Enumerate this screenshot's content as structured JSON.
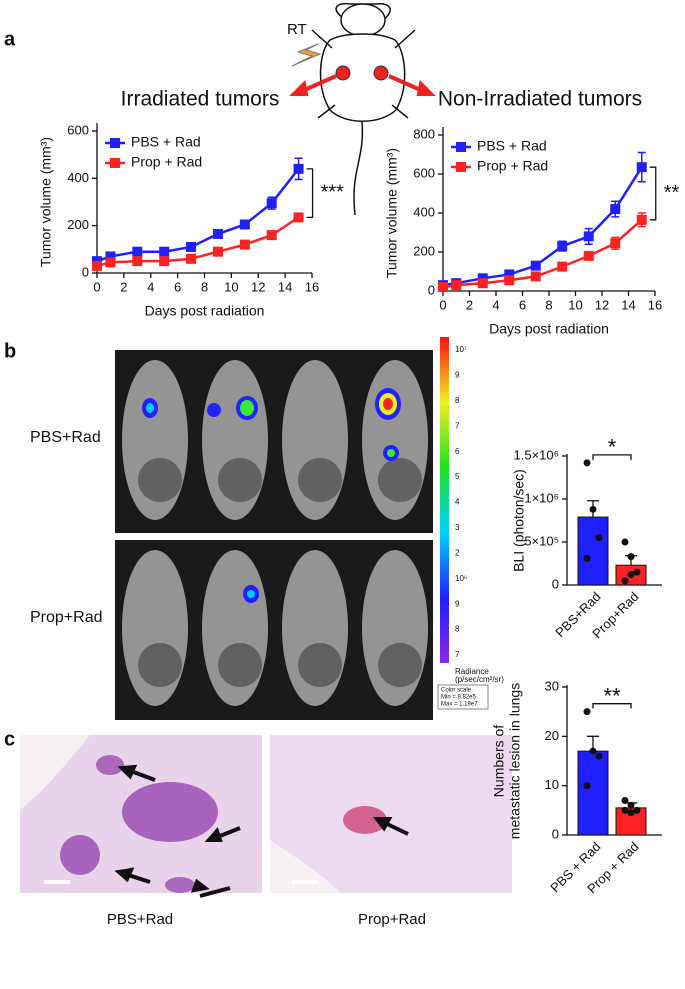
{
  "figure": {
    "panel_labels": [
      "a",
      "b",
      "c"
    ],
    "rt_label": "RT",
    "bli_rows": [
      "PBS+Rad",
      "Prop+Rad"
    ],
    "colorbar_labels": [
      "10⁷",
      "9",
      "8",
      "7",
      "6",
      "5",
      "4",
      "3",
      "2",
      "10⁶",
      "9",
      "8",
      "7"
    ],
    "colorbar_unit": [
      "Radiance",
      "(p/sec/cm²/sr)"
    ],
    "colorbar_box": [
      "Color scale",
      "Min = 8.82e5",
      "Max = 1.18e7"
    ],
    "histology_captions": [
      "PBS+Rad",
      "Prop+Rad"
    ]
  },
  "chart_data": [
    {
      "type": "line",
      "title": "Irradiated tumors",
      "x_label": "Days post radiation",
      "y_label": "Tumor volume (mm³)",
      "x": [
        0,
        1,
        3,
        5,
        7,
        9,
        11,
        13,
        15
      ],
      "series": [
        {
          "name": "PBS + Rad",
          "color": "#1f1fff",
          "values": [
            50,
            70,
            90,
            90,
            110,
            165,
            205,
            295,
            440
          ],
          "errors": [
            10,
            10,
            10,
            10,
            10,
            15,
            15,
            25,
            45
          ]
        },
        {
          "name": "Prop + Rad",
          "color": "#ff2222",
          "values": [
            30,
            45,
            50,
            50,
            60,
            90,
            120,
            160,
            235
          ],
          "errors": [
            5,
            5,
            5,
            5,
            5,
            10,
            10,
            10,
            15
          ]
        }
      ],
      "xlim": [
        0,
        16
      ],
      "xticks": [
        0,
        2,
        4,
        6,
        8,
        10,
        12,
        14,
        16
      ],
      "ylim": [
        0,
        600
      ],
      "yticks": [
        0,
        200,
        400,
        600
      ],
      "annotation": "***",
      "legend": "upper left"
    },
    {
      "type": "line",
      "title": "Non-Irradiated tumors",
      "x_label": "Days post radiation",
      "y_label": "Tumor volume (mm³)",
      "x": [
        0,
        1,
        3,
        5,
        7,
        9,
        11,
        13,
        15
      ],
      "series": [
        {
          "name": "PBS + Rad",
          "color": "#1f1fff",
          "values": [
            30,
            40,
            65,
            85,
            130,
            230,
            280,
            420,
            635
          ],
          "errors": [
            10,
            10,
            10,
            10,
            15,
            25,
            40,
            40,
            75
          ]
        },
        {
          "name": "Prop + Rad",
          "color": "#ff2222",
          "values": [
            20,
            30,
            40,
            55,
            75,
            125,
            180,
            245,
            365
          ],
          "errors": [
            5,
            5,
            5,
            10,
            10,
            15,
            20,
            30,
            35
          ]
        }
      ],
      "xlim": [
        0,
        16
      ],
      "xticks": [
        0,
        2,
        4,
        6,
        8,
        10,
        12,
        14,
        16
      ],
      "ylim": [
        0,
        800
      ],
      "yticks": [
        0,
        200,
        400,
        600,
        800
      ],
      "annotation": "**",
      "legend": "upper left"
    },
    {
      "type": "bar",
      "y_label": "BLI (photon/sec)",
      "categories": [
        "PBS+Rad",
        "Prop+Rad"
      ],
      "colors": [
        "#1f1fff",
        "#ff2222"
      ],
      "values": [
        790000,
        230000
      ],
      "errors": [
        190000,
        110000
      ],
      "points": [
        [
          1420000,
          880000,
          550000,
          310000
        ],
        [
          500000,
          330000,
          150000,
          50000,
          120000
        ]
      ],
      "ylim": [
        0,
        1500000
      ],
      "yticks": [
        0,
        {
          "value": 500000,
          "label": "5×10⁵"
        },
        {
          "value": 1000000,
          "label": "1×10⁶"
        },
        {
          "value": 1500000,
          "label": "1.5×10⁶"
        }
      ],
      "annotation": "*"
    },
    {
      "type": "bar",
      "y_label": [
        "Numbers of",
        "metastatic lesion in lungs"
      ],
      "categories": [
        "PBS + Rad",
        "Prop + Rad"
      ],
      "colors": [
        "#1f1fff",
        "#ff2222"
      ],
      "values": [
        17,
        5.5
      ],
      "errors": [
        3,
        1
      ],
      "points": [
        [
          25,
          17,
          16,
          10
        ],
        [
          7,
          6,
          5,
          5,
          4.5
        ]
      ],
      "ylim": [
        0,
        30
      ],
      "yticks": [
        0,
        10,
        20,
        30
      ],
      "annotation": "**"
    }
  ]
}
